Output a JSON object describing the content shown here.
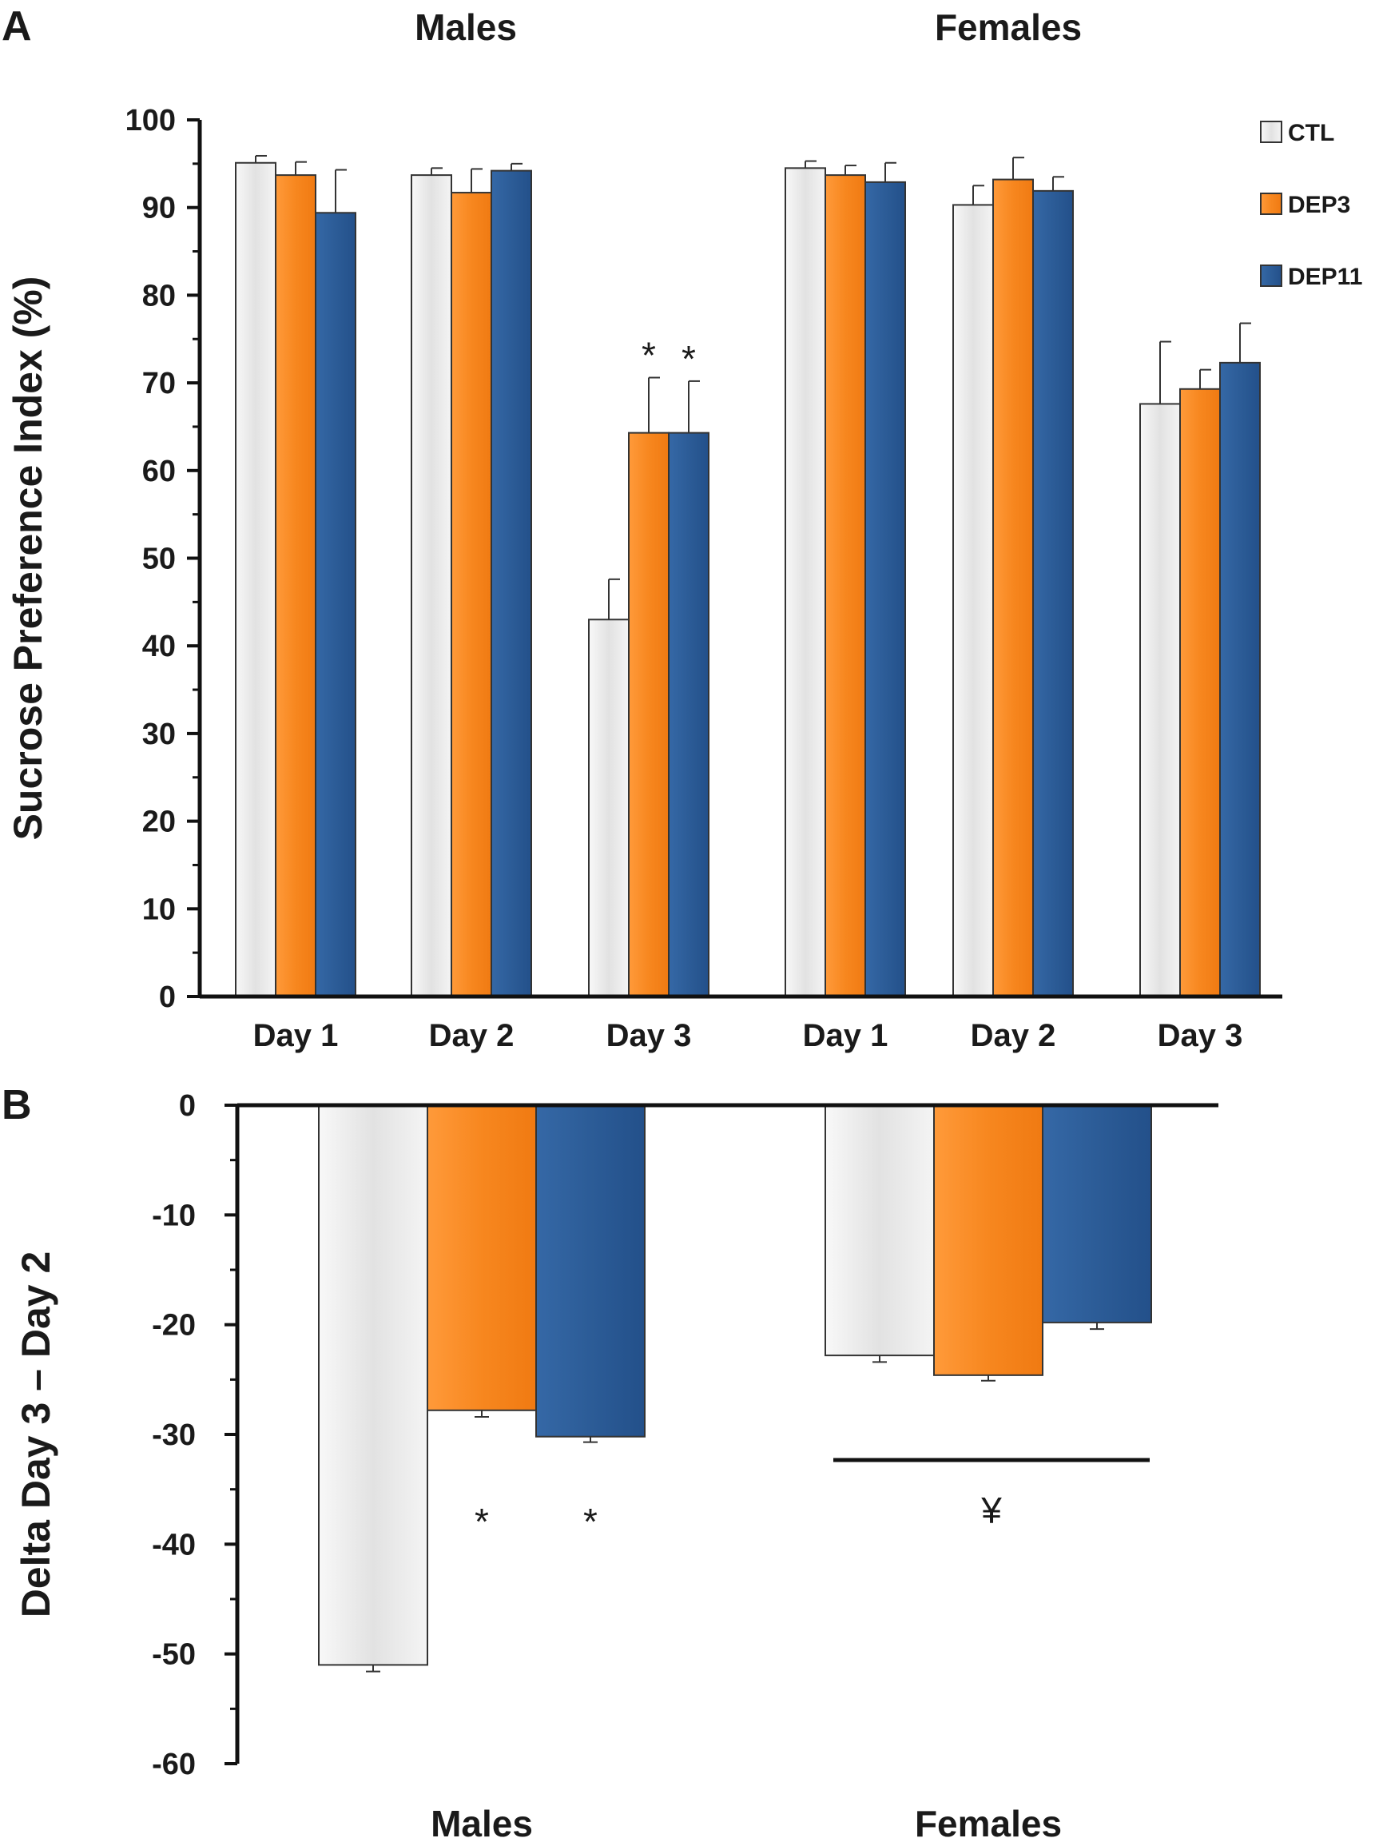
{
  "colors": {
    "CTL": "#e6e6e6",
    "DEP3": "#f7871f",
    "DEP11": "#2c5c97",
    "axis": "#111111"
  },
  "chart_data": [
    {
      "panel": "A",
      "type": "bar",
      "ylabel": "Sucrose Preference Index (%)",
      "ylim": [
        0,
        100
      ],
      "yticks": [
        0,
        10,
        20,
        30,
        40,
        50,
        60,
        70,
        80,
        90,
        100
      ],
      "groups": [
        "Males",
        "Females"
      ],
      "categories": [
        "Day 1",
        "Day 2",
        "Day 3",
        "Day 1",
        "Day 2",
        "Day 3"
      ],
      "legend": {
        "position": "top-right",
        "entries": [
          "CTL",
          "DEP3",
          "DEP11"
        ]
      },
      "series": [
        {
          "name": "CTL",
          "values": [
            95.1,
            93.7,
            43.0,
            94.5,
            90.3,
            67.6
          ],
          "errors": [
            0.8,
            0.8,
            4.6,
            0.8,
            2.2,
            7.1
          ]
        },
        {
          "name": "DEP3",
          "values": [
            93.7,
            91.7,
            64.3,
            93.7,
            93.2,
            69.3
          ],
          "errors": [
            1.5,
            2.7,
            6.3,
            1.1,
            2.5,
            2.2
          ]
        },
        {
          "name": "DEP11",
          "values": [
            89.4,
            94.2,
            64.3,
            92.9,
            91.9,
            72.3
          ],
          "errors": [
            4.9,
            0.8,
            5.9,
            2.2,
            1.6,
            4.5
          ]
        }
      ],
      "annotations": [
        {
          "text": "*",
          "category_index": 2,
          "series": "DEP3"
        },
        {
          "text": "*",
          "category_index": 2,
          "series": "DEP11"
        }
      ]
    },
    {
      "panel": "B",
      "type": "bar",
      "ylabel": "Delta Day 3 – Day 2",
      "ylim": [
        -60,
        0
      ],
      "yticks": [
        0,
        -10,
        -20,
        -30,
        -40,
        -50,
        -60
      ],
      "categories": [
        "Males",
        "Females"
      ],
      "series": [
        {
          "name": "CTL",
          "values": [
            -51.0,
            -22.8
          ],
          "errors": [
            0.6,
            0.6
          ]
        },
        {
          "name": "DEP3",
          "values": [
            -27.8,
            -24.6
          ],
          "errors": [
            0.6,
            0.5
          ]
        },
        {
          "name": "DEP11",
          "values": [
            -30.2,
            -19.8
          ],
          "errors": [
            0.5,
            0.6
          ]
        }
      ],
      "annotations": [
        {
          "text": "*",
          "category_index": 0,
          "series": "DEP3"
        },
        {
          "text": "*",
          "category_index": 0,
          "series": "DEP11"
        },
        {
          "text": "¥",
          "category_index": 1,
          "series": "all"
        }
      ]
    }
  ]
}
